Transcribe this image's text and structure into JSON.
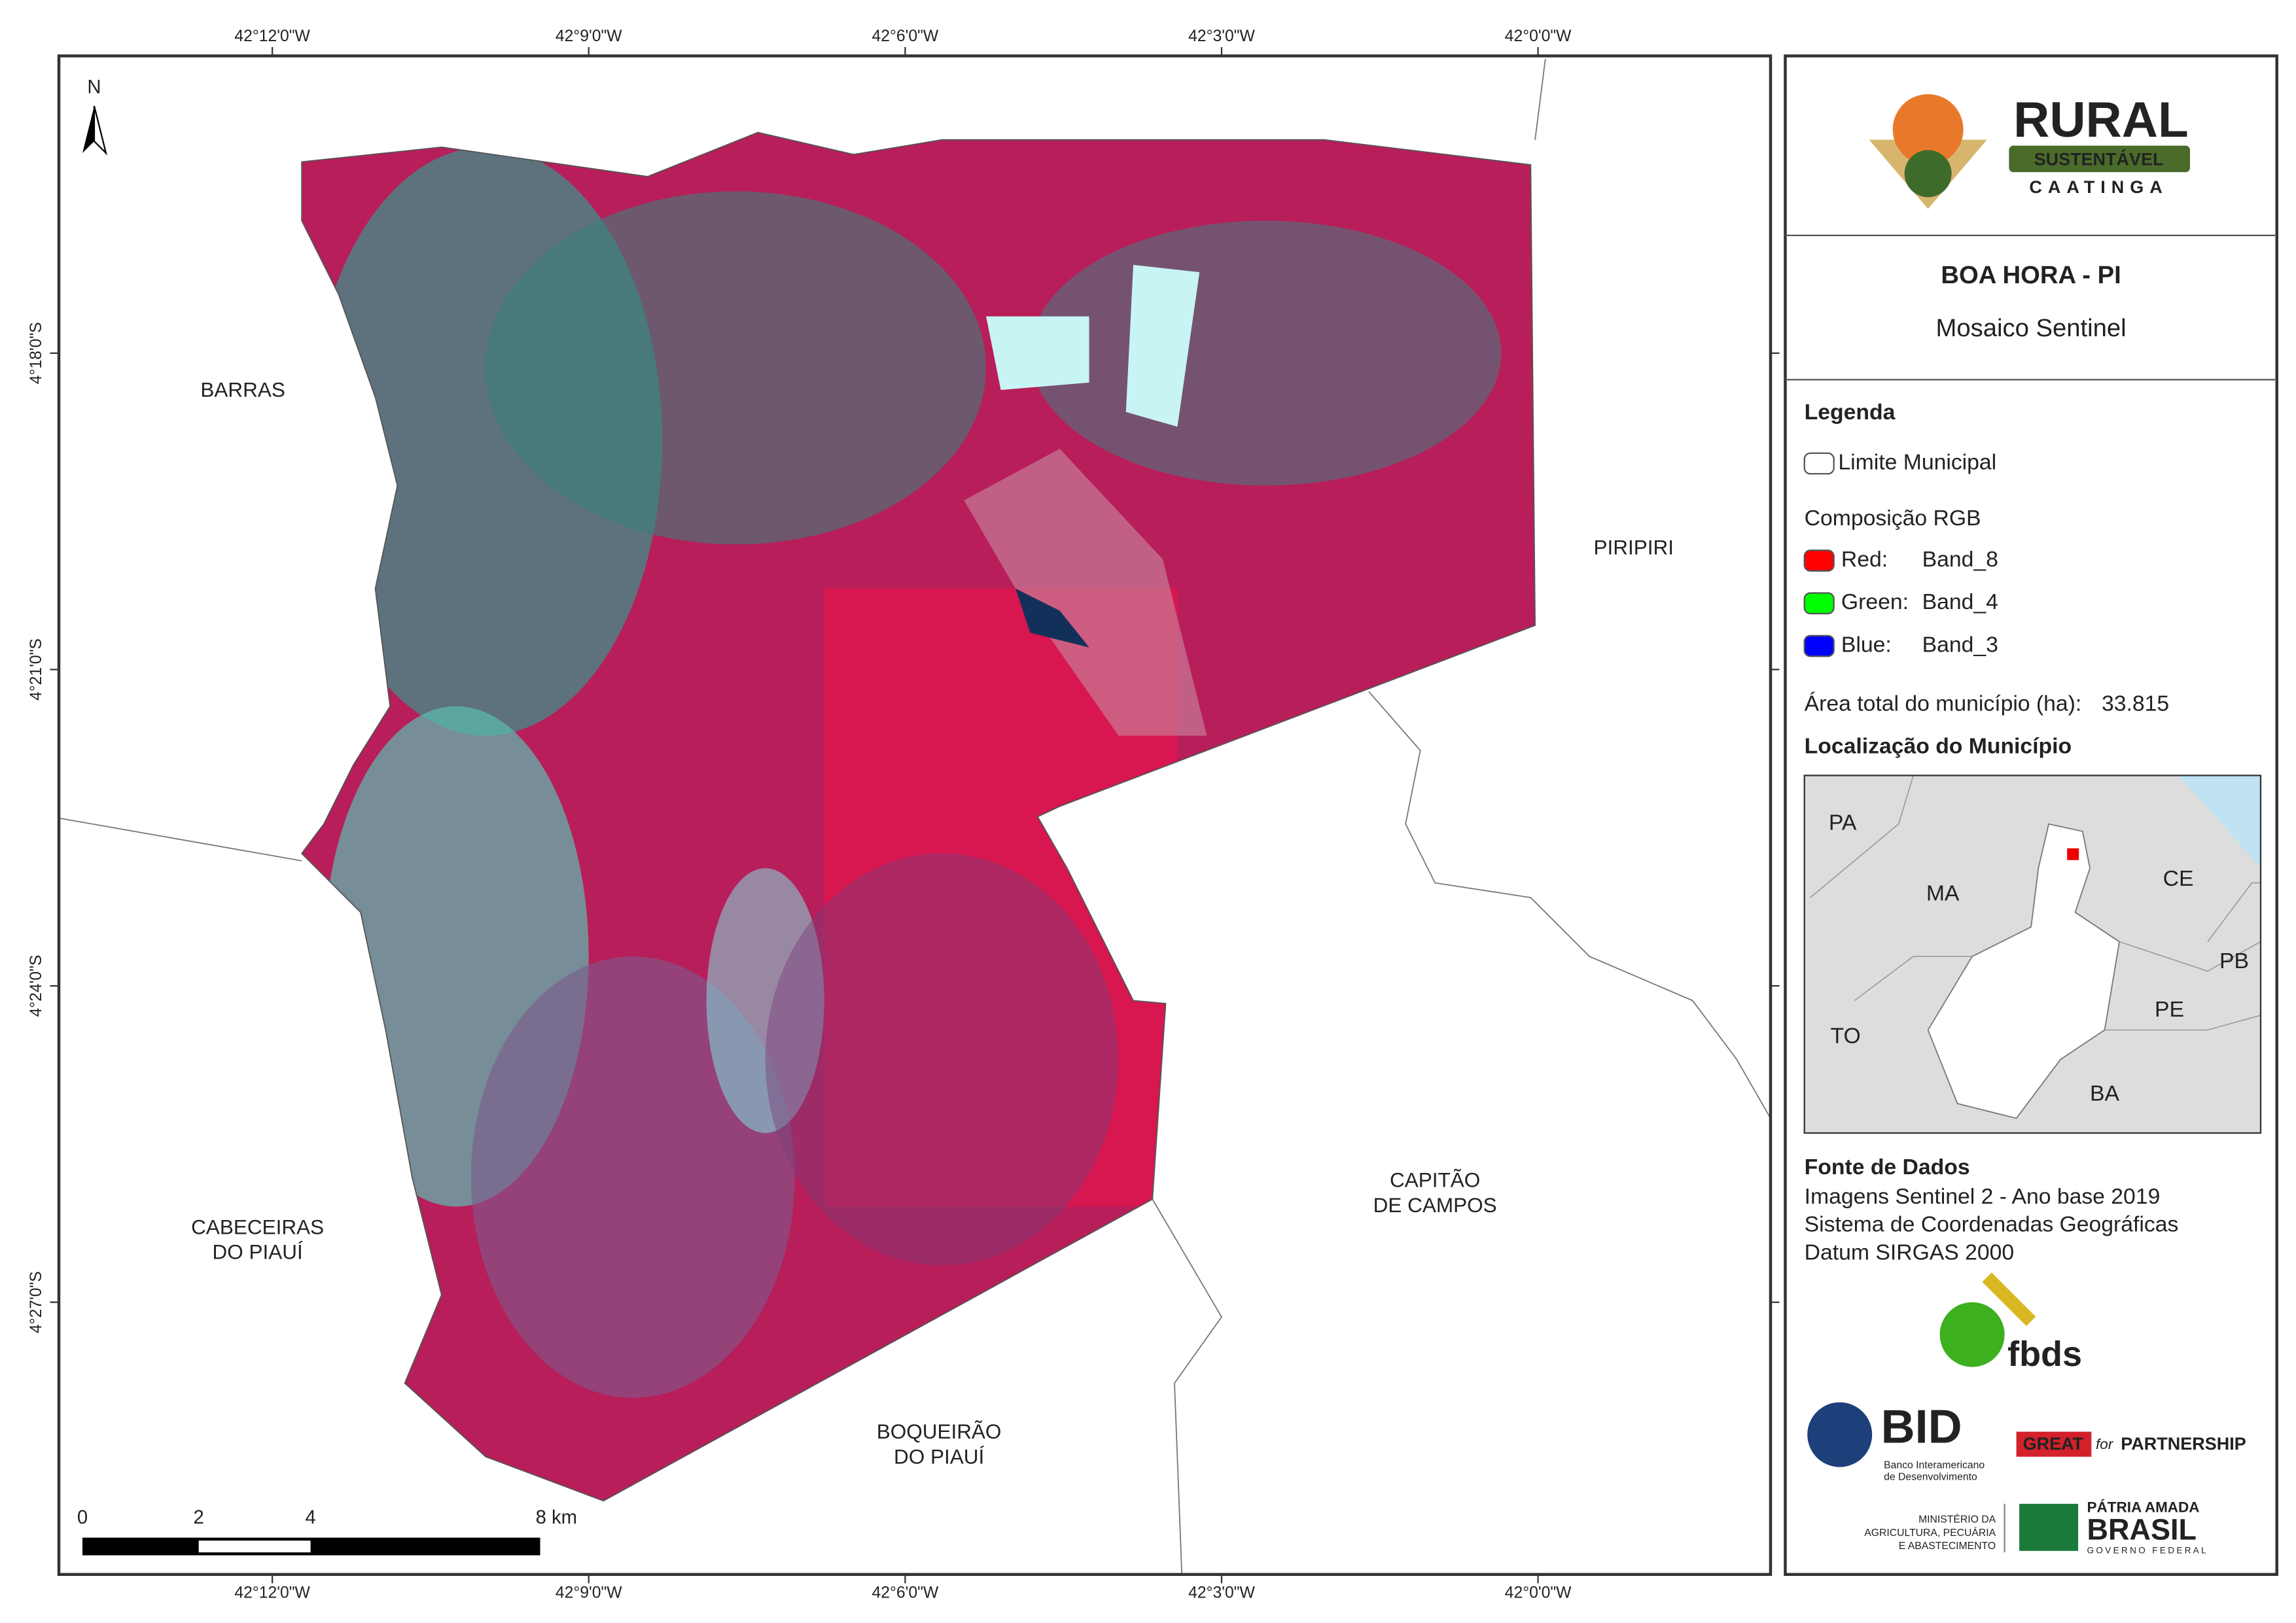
{
  "map": {
    "north": "N",
    "top_ticks": [
      "42°12'0\"W",
      "42°9'0\"W",
      "42°6'0\"W",
      "42°3'0\"W",
      "42°0'0\"W"
    ],
    "bottom_ticks": [
      "42°12'0\"W",
      "42°9'0\"W",
      "42°6'0\"W",
      "42°3'0\"W",
      "42°0'0\"W"
    ],
    "left_ticks": [
      "4°18'0\"S",
      "4°21'0\"S",
      "4°24'0\"S",
      "4°27'0\"S"
    ],
    "places": [
      {
        "lines": [
          "BARRAS"
        ]
      },
      {
        "lines": [
          "PIRIPIRI"
        ]
      },
      {
        "lines": [
          "CAPITÃO",
          "DE CAMPOS"
        ]
      },
      {
        "lines": [
          "CABECEIRAS",
          "DO PIAUÍ"
        ]
      },
      {
        "lines": [
          "BOQUEIRÃO",
          "DO PIAUÍ"
        ]
      }
    ],
    "scale_bar": [
      "0",
      "2",
      "4",
      "8 km"
    ]
  },
  "panel": {
    "logo": {
      "title": "RURAL",
      "band": "SUSTENTÁVEL",
      "subtitle": "CAATINGA"
    },
    "title": "BOA HORA - PI",
    "subtitle": "Mosaico Sentinel",
    "legend": {
      "heading": "Legenda",
      "boundary": "Limite Municipal",
      "rgb_heading": "Composição RGB",
      "items": [
        {
          "channel": "Red:",
          "band": "Band_8",
          "color": "#ff0000"
        },
        {
          "channel": "Green:",
          "band": "Band_4",
          "color": "#00ff00"
        },
        {
          "channel": "Blue:",
          "band": "Band_3",
          "color": "#0000ff"
        }
      ]
    },
    "area": {
      "label": "Área total do município (ha):",
      "value": "33.815"
    },
    "location": {
      "heading": "Localização do Município",
      "labels": [
        "PA",
        "MA",
        "CE",
        "PB",
        "PE",
        "TO",
        "BA"
      ]
    },
    "sources": {
      "heading": "Fonte de Dados",
      "lines": [
        "Imagens Sentinel 2 - Ano base 2019",
        "Sistema de Coordenadas Geográficas",
        "Datum SIRGAS 2000"
      ]
    },
    "partners": {
      "fbds": "fbds",
      "bid": "BID",
      "bid_name": [
        "Banco Interamericano",
        "de Desenvolvimento"
      ],
      "great": "GREAT",
      "great_for": "for",
      "partnership": "PARTNERSHIP",
      "ministry": [
        "MINISTÉRIO DA",
        "AGRICULTURA, PECUÁRIA",
        "E ABASTECIMENTO"
      ],
      "brasil_top": "PÁTRIA AMADA",
      "brasil": "BRASIL",
      "brasil_bottom": "GOVERNO FEDERAL"
    }
  }
}
